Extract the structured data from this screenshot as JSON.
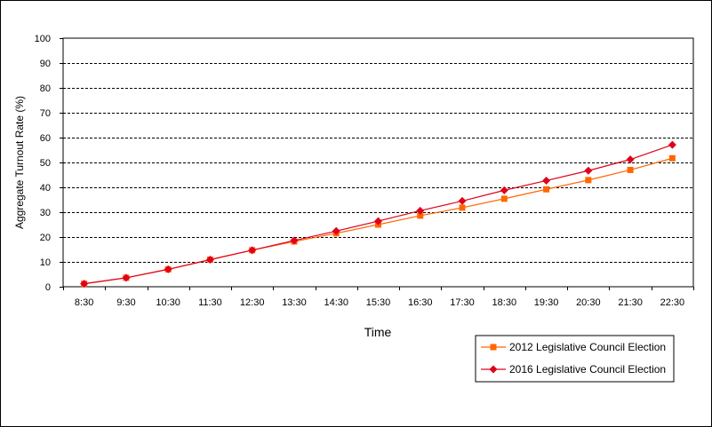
{
  "chart_data": {
    "type": "line",
    "title": "",
    "xlabel": "Time",
    "ylabel": "Aggregate Turnout Rate (%)",
    "ylim": [
      0,
      100
    ],
    "yticks": [
      0,
      10,
      20,
      30,
      40,
      50,
      60,
      70,
      80,
      90,
      100
    ],
    "grid": "horizontal-dashed",
    "legend_position": "bottom-right",
    "categories": [
      "8:30",
      "9:30",
      "10:30",
      "11:30",
      "12:30",
      "13:30",
      "14:30",
      "15:30",
      "16:30",
      "17:30",
      "18:30",
      "19:30",
      "20:30",
      "21:30",
      "22:30"
    ],
    "series": [
      {
        "name": "2012 Legislative Council Election",
        "color": "#FF6600",
        "marker": "square",
        "values": [
          1.2,
          3.6,
          7.0,
          10.9,
          14.7,
          18.2,
          21.5,
          25.0,
          28.6,
          31.8,
          35.4,
          39.2,
          42.9,
          47.0,
          51.7
        ]
      },
      {
        "name": "2016 Legislative Council Election",
        "color": "#E0001B",
        "marker": "diamond",
        "values": [
          1.2,
          3.6,
          7.0,
          10.9,
          14.7,
          18.6,
          22.4,
          26.4,
          30.6,
          34.5,
          38.8,
          42.7,
          46.7,
          51.2,
          57.1
        ]
      }
    ]
  }
}
